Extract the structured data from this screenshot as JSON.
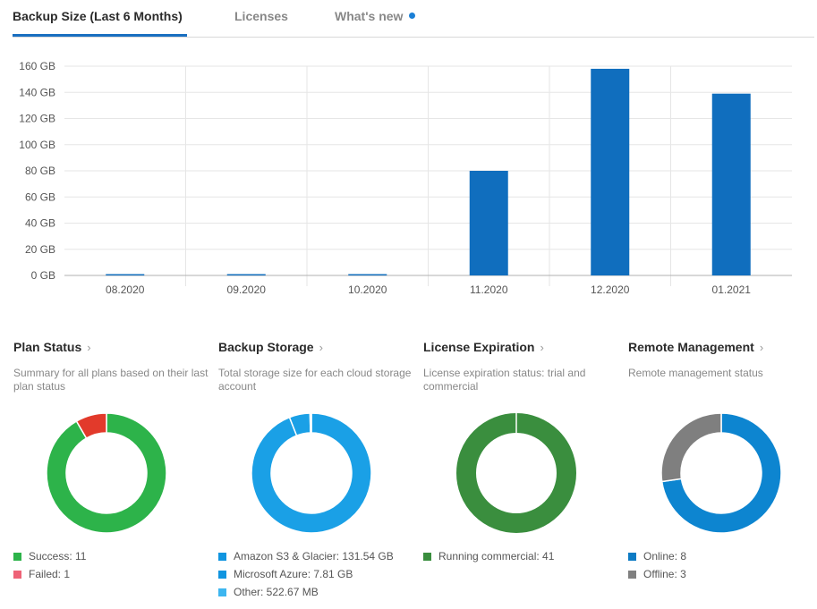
{
  "tabs": [
    {
      "label": "Backup Size (Last 6 Months)",
      "active": true
    },
    {
      "label": "Licenses",
      "active": false
    },
    {
      "label": "What's new",
      "active": false,
      "indicator_color": "#1a7fd6"
    }
  ],
  "chart_data": {
    "type": "bar",
    "categories": [
      "08.2020",
      "09.2020",
      "10.2020",
      "11.2020",
      "12.2020",
      "01.2021"
    ],
    "values": [
      1,
      1,
      1,
      80,
      158,
      139
    ],
    "ylim": [
      0,
      160
    ],
    "yticks": [
      "0 GB",
      "20 GB",
      "40 GB",
      "60 GB",
      "80 GB",
      "100 GB",
      "120 GB",
      "140 GB",
      "160 GB"
    ],
    "ytick_values": [
      0,
      20,
      40,
      60,
      80,
      100,
      120,
      140,
      160
    ],
    "grid": true,
    "bar_color": "#106ebe"
  },
  "widgets": [
    {
      "title": "Plan Status",
      "description": "Summary for all plans based on their last plan status",
      "legend": [
        {
          "label": "Success: 11",
          "color": "#2db34a"
        },
        {
          "label": "Failed: 1",
          "color": "#ee6377"
        }
      ],
      "slices": [
        {
          "value": 11,
          "color": "#2db34a"
        },
        {
          "value": 1,
          "color": "#e23a2b"
        }
      ]
    },
    {
      "title": "Backup Storage",
      "description": "Total storage size for each cloud storage account",
      "legend": [
        {
          "label": "Amazon S3 & Glacier: 131.54 GB",
          "color": "#1095e0"
        },
        {
          "label": "Microsoft Azure: 7.81 GB",
          "color": "#1095e0"
        },
        {
          "label": "Other: 522.67 MB",
          "color": "#3db6f0"
        }
      ],
      "slices": [
        {
          "value": 131.54,
          "color": "#1aa0e6"
        },
        {
          "value": 7.81,
          "color": "#1aa0e6"
        },
        {
          "value": 0.52267,
          "color": "#3db6f0"
        }
      ]
    },
    {
      "title": "License Expiration",
      "description": "License expiration status: trial and commercial",
      "legend": [
        {
          "label": "Running commercial: 41",
          "color": "#3a8e3e"
        }
      ],
      "slices": [
        {
          "value": 41,
          "color": "#3a8e3e"
        }
      ]
    },
    {
      "title": "Remote Management",
      "description": "Remote management status",
      "legend": [
        {
          "label": "Online: 8",
          "color": "#0d7bc4"
        },
        {
          "label": "Offline: 3",
          "color": "#808080"
        }
      ],
      "slices": [
        {
          "value": 8,
          "color": "#0d85d0"
        },
        {
          "value": 3,
          "color": "#7f7f7f"
        }
      ]
    }
  ]
}
